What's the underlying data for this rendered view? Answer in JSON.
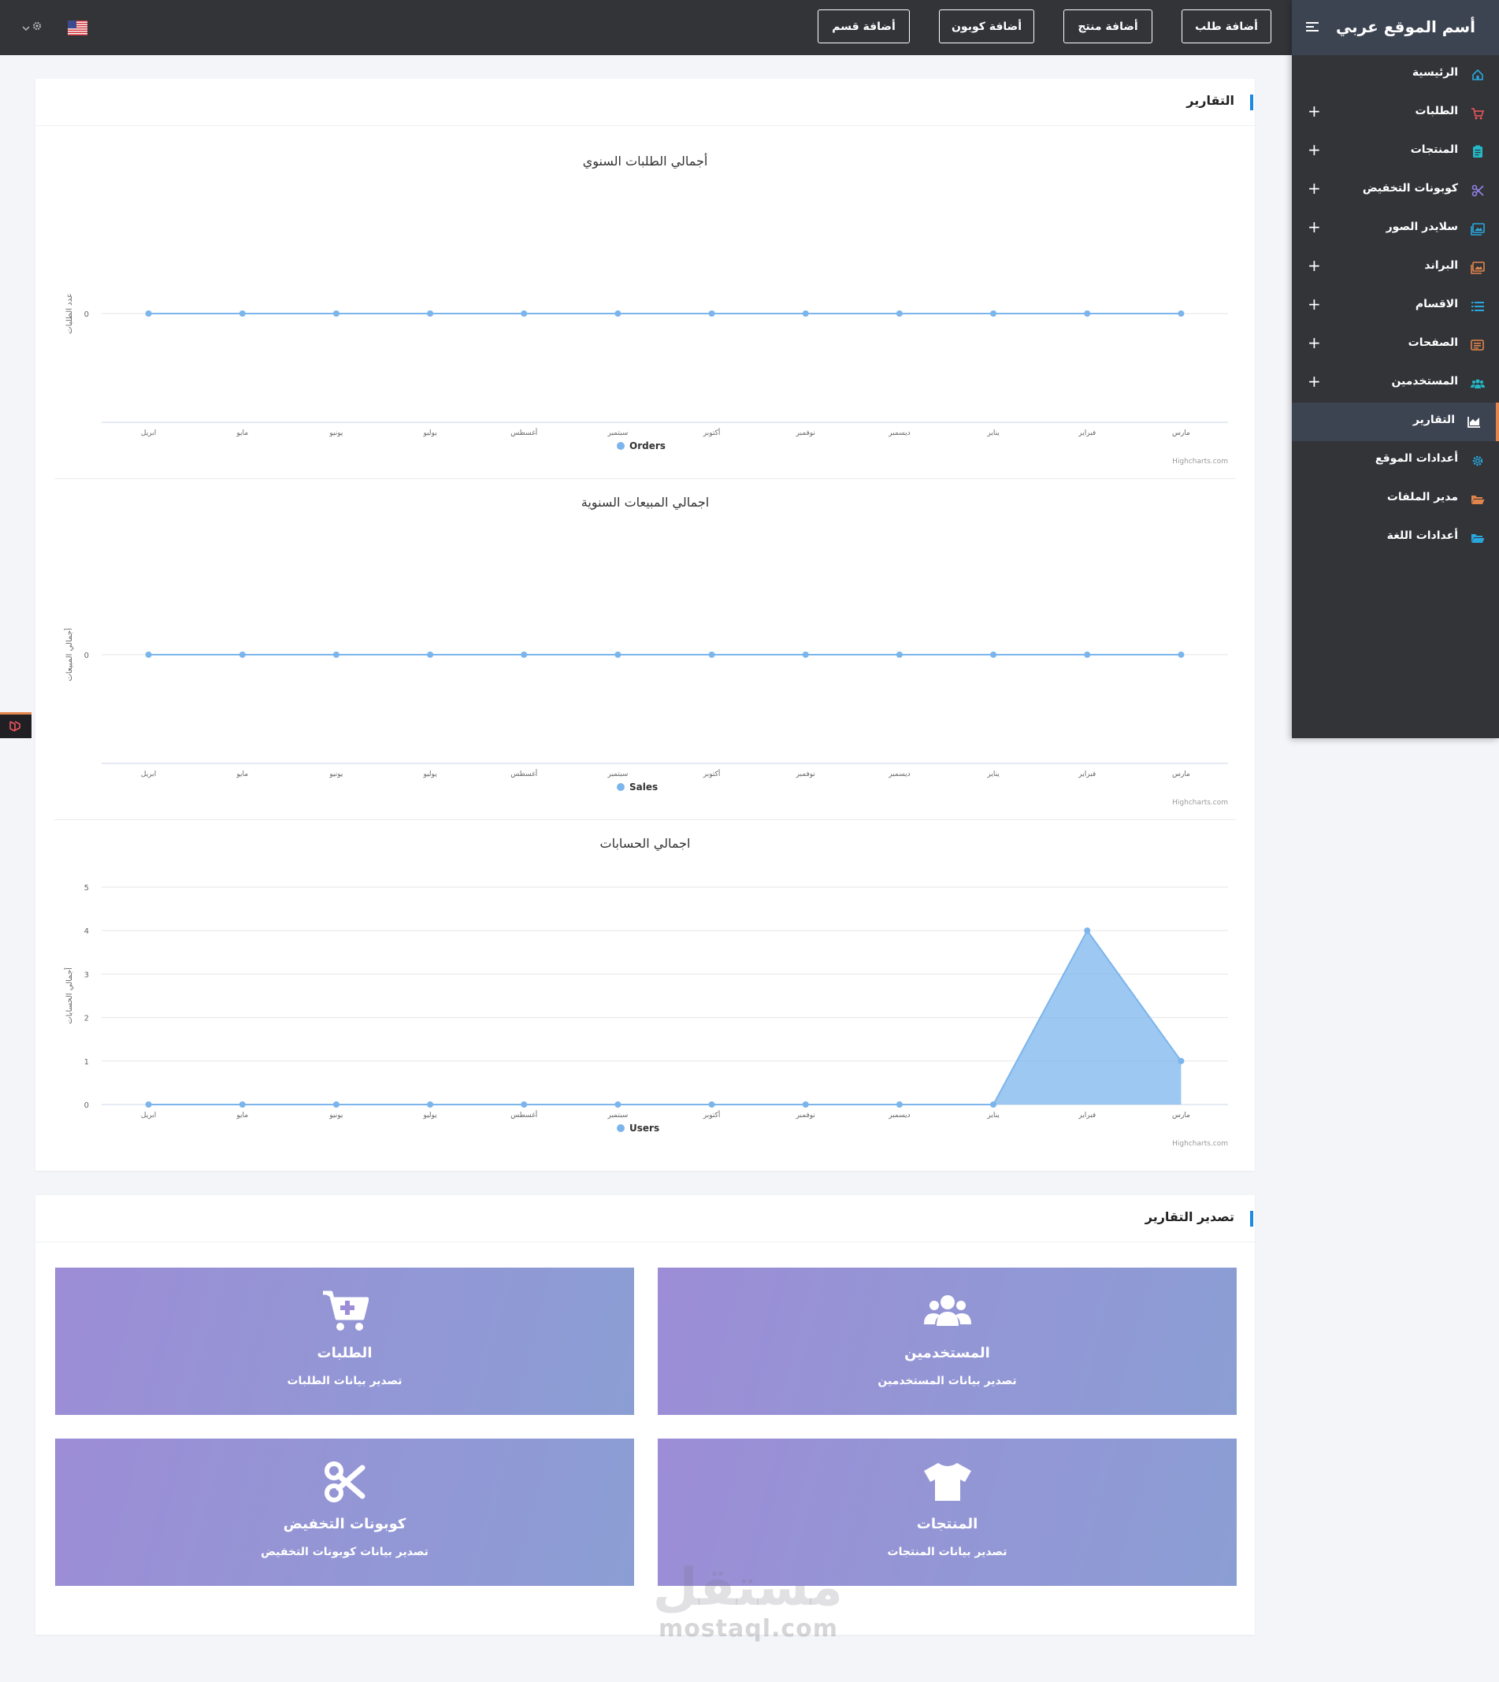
{
  "topbar": {
    "buttons": [
      {
        "label": "أضافة طلب",
        "color": "#3a9bd5"
      },
      {
        "label": "أضافة منتج",
        "color": "#e2854c"
      },
      {
        "label": "أضافة كوبون",
        "color": "#2bb39a"
      },
      {
        "label": "أضافة قسم",
        "color": "#e2854c"
      }
    ],
    "language_icon": "us-flag-icon",
    "settings_icon": "gear-icon"
  },
  "sidebar": {
    "brand": "أسم الموقع عربي",
    "toggle_icon": "menu-toggle-icon",
    "items": [
      {
        "label": "الرئيسية",
        "icon": "home-icon",
        "color": "#29a8e0",
        "expandable": false,
        "active": false
      },
      {
        "label": "الطلبات",
        "icon": "cart-icon",
        "color": "#f0565e",
        "expandable": true,
        "active": false
      },
      {
        "label": "المنتجات",
        "icon": "clipboard-icon",
        "color": "#23b9c7",
        "expandable": true,
        "active": false
      },
      {
        "label": "كوبونات التخفيض",
        "icon": "scissors-icon",
        "color": "#8f83e8",
        "expandable": true,
        "active": false
      },
      {
        "label": "سلايدر الصور",
        "icon": "images-icon",
        "color": "#29a8e0",
        "expandable": true,
        "active": false
      },
      {
        "label": "البراند",
        "icon": "images-icon",
        "color": "#e2854c",
        "expandable": true,
        "active": false
      },
      {
        "label": "الاقسام",
        "icon": "list-icon",
        "color": "#29a8e0",
        "expandable": true,
        "active": false
      },
      {
        "label": "الصفحات",
        "icon": "pages-icon",
        "color": "#e2854c",
        "expandable": true,
        "active": false
      },
      {
        "label": "المستخدمين",
        "icon": "users-icon",
        "color": "#23b9c7",
        "expandable": true,
        "active": false
      },
      {
        "label": "التقارير",
        "icon": "chart-icon",
        "color": "#ffffff",
        "expandable": false,
        "active": true
      },
      {
        "label": "أعدادات الموقع",
        "icon": "gear-icon",
        "color": "#29a8e0",
        "expandable": false,
        "active": false
      },
      {
        "label": "مدير الملفات",
        "icon": "folder-icon",
        "color": "#e2854c",
        "expandable": false,
        "active": false
      },
      {
        "label": "أعدادات اللغة",
        "icon": "folder-icon",
        "color": "#29a8e0",
        "expandable": false,
        "active": false
      }
    ]
  },
  "reports": {
    "title": "التقارير",
    "credit": "Highcharts.com"
  },
  "chart_data": [
    {
      "type": "line",
      "title": "أجمالي الطلبات السنوي",
      "ylabel": "عدد الطلبات",
      "categories": [
        "ابريل",
        "مايو",
        "يونيو",
        "يوليو",
        "أغسطس",
        "سبتمبر",
        "أكتوبر",
        "نوفمبر",
        "ديسمبر",
        "يناير",
        "فبراير",
        "مارس"
      ],
      "series": [
        {
          "name": "Orders",
          "values": [
            0,
            0,
            0,
            0,
            0,
            0,
            0,
            0,
            0,
            0,
            0,
            0
          ]
        }
      ],
      "yticks": [
        0
      ],
      "color": "#7cb5ec"
    },
    {
      "type": "line",
      "title": "اجمالي المبيعات السنوية",
      "ylabel": "أجمالي المبيعات",
      "categories": [
        "ابريل",
        "مايو",
        "يونيو",
        "يوليو",
        "أغسطس",
        "سبتمبر",
        "أكتوبر",
        "نوفمبر",
        "ديسمبر",
        "يناير",
        "فبراير",
        "مارس"
      ],
      "series": [
        {
          "name": "Sales",
          "values": [
            0,
            0,
            0,
            0,
            0,
            0,
            0,
            0,
            0,
            0,
            0,
            0
          ]
        }
      ],
      "yticks": [
        0
      ],
      "color": "#7cb5ec"
    },
    {
      "type": "area",
      "title": "اجمالي الحسابات",
      "ylabel": "أجمالي الحسابات",
      "categories": [
        "ابريل",
        "مايو",
        "يونيو",
        "يوليو",
        "أغسطس",
        "سبتمبر",
        "أكتوبر",
        "نوفمبر",
        "ديسمبر",
        "يناير",
        "فبراير",
        "مارس"
      ],
      "series": [
        {
          "name": "Users",
          "values": [
            0,
            0,
            0,
            0,
            0,
            0,
            0,
            0,
            0,
            0,
            4,
            1
          ]
        }
      ],
      "yticks": [
        0,
        1,
        2,
        3,
        4,
        5
      ],
      "ylim": [
        0,
        5
      ],
      "color": "#7cb5ec"
    }
  ],
  "export": {
    "title": "تصدير التقارير",
    "tiles": [
      {
        "title": "المستخدمين",
        "subtitle": "تصدير بيانات المستخدمين",
        "icon": "users-icon"
      },
      {
        "title": "الطلبات",
        "subtitle": "تصدير بيانات الطلبات",
        "icon": "cart-plus-icon"
      },
      {
        "title": "المنتجات",
        "subtitle": "تصدير بيانات المنتجات",
        "icon": "tshirt-icon"
      },
      {
        "title": "كوبونات التخفيض",
        "subtitle": "تصدير بيانات كوبونات التخفيض",
        "icon": "scissors-icon"
      }
    ]
  },
  "watermark": {
    "logo": "مستقل",
    "url": "mostaql.com"
  }
}
